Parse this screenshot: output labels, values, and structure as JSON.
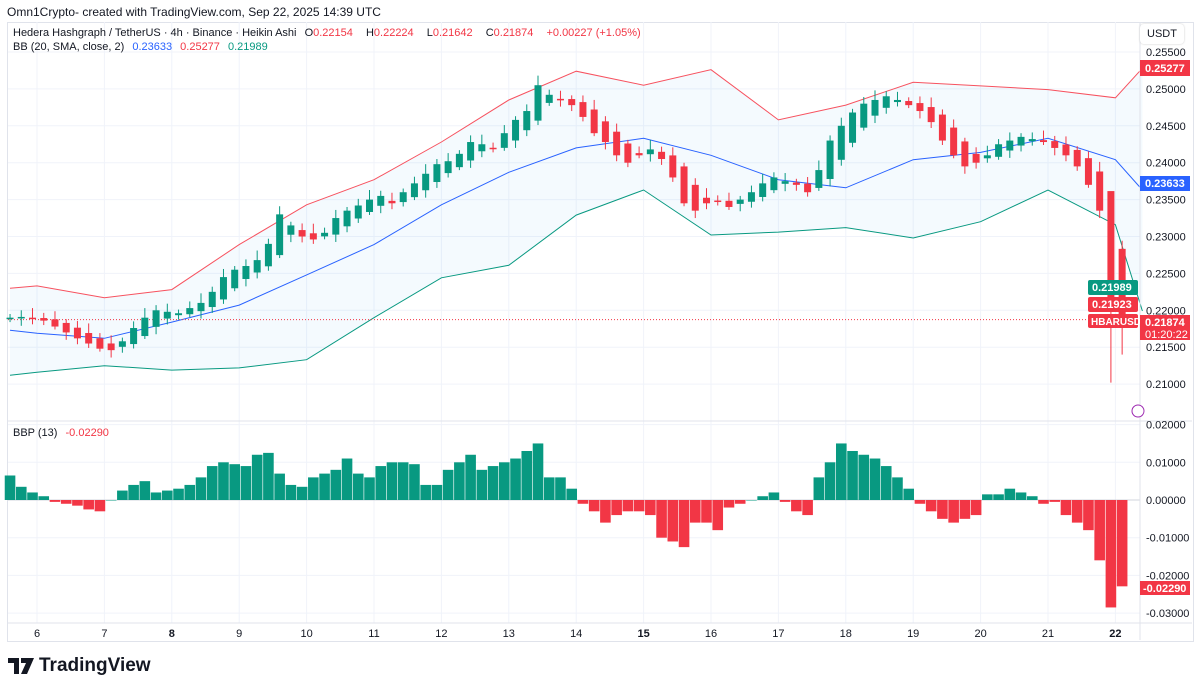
{
  "header": {
    "credit": "Omn1Crypto- created with TradingView.com, Sep 22, 2025 14:39 UTC"
  },
  "legend": {
    "symbol": "Hedera Hashgraph / TetherUS · 4h · Binance · Heikin Ashi",
    "o_label": "O",
    "o": "0.22154",
    "h_label": "H",
    "h": "0.22224",
    "l_label": "L",
    "l": "0.21642",
    "c_label": "C",
    "c": "0.21874",
    "change": "+0.00227 (+1.05%)",
    "bb_label": "BB (20, SMA, close, 2)",
    "bb_mid": "0.23633",
    "bb_up": "0.25277",
    "bb_low": "0.21989",
    "bbp_label": "BBP (13)",
    "bbp_value": "-0.02290"
  },
  "currency_button": "USDT",
  "price_axis": {
    "ticks": [
      "0.25500",
      "0.25000",
      "0.24500",
      "0.24000",
      "0.23500",
      "0.23000",
      "0.22500",
      "0.22000",
      "0.21500",
      "0.21000"
    ]
  },
  "bbp_axis": {
    "ticks": [
      "0.02000",
      "0.01000",
      "0.00000",
      "-0.01000",
      "-0.02000",
      "-0.03000"
    ]
  },
  "labels": {
    "upper": "0.25277",
    "middle": "0.23633",
    "lower": "0.21989",
    "prev": "0.21923",
    "symbol": "HBARUSDT",
    "price": "0.21874",
    "countdown": "01:20:22",
    "bbp": "-0.02290"
  },
  "time_axis": {
    "ticks": [
      "6",
      "7",
      "8",
      "9",
      "10",
      "11",
      "12",
      "13",
      "14",
      "15",
      "16",
      "17",
      "18",
      "19",
      "20",
      "21",
      "22"
    ]
  },
  "logo_text": "TradingView",
  "colors": {
    "up": "#089981",
    "down": "#f23645",
    "mid": "#2962ff",
    "upper": "#f7525f",
    "lower": "#089981"
  },
  "chart_data": {
    "type": "candlestick",
    "start_day": 5.6,
    "candles_per_day": 6,
    "closes": [
      0.219,
      0.2191,
      0.2189,
      0.2186,
      0.2178,
      0.217,
      0.2162,
      0.2155,
      0.2148,
      0.2146,
      0.2158,
      0.2176,
      0.219,
      0.22,
      0.2198,
      0.2196,
      0.2203,
      0.221,
      0.2225,
      0.2245,
      0.2255,
      0.226,
      0.2268,
      0.229,
      0.233,
      0.2315,
      0.23,
      0.2296,
      0.2305,
      0.2325,
      0.2335,
      0.2342,
      0.235,
      0.2355,
      0.2345,
      0.236,
      0.2372,
      0.2385,
      0.2398,
      0.2402,
      0.2412,
      0.2428,
      0.2425,
      0.242,
      0.244,
      0.2458,
      0.247,
      0.2505,
      0.2492,
      0.2486,
      0.2478,
      0.2462,
      0.244,
      0.2428,
      0.241,
      0.24,
      0.241,
      0.2418,
      0.2405,
      0.238,
      0.2345,
      0.2335,
      0.2345,
      0.2348,
      0.234,
      0.235,
      0.236,
      0.2372,
      0.238,
      0.2375,
      0.237,
      0.236,
      0.239,
      0.243,
      0.245,
      0.2468,
      0.248,
      0.2485,
      0.249,
      0.2485,
      0.2478,
      0.247,
      0.2455,
      0.243,
      0.241,
      0.2395,
      0.24,
      0.241,
      0.2425,
      0.243,
      0.2435,
      0.2432,
      0.2428,
      0.242,
      0.241,
      0.2395,
      0.237,
      0.2335,
      0.2205,
      0.2187
    ],
    "bb_days": [
      5.6,
      6,
      7,
      8,
      9,
      10,
      11,
      12,
      13,
      14,
      15,
      16,
      17,
      18,
      19,
      20,
      21,
      22,
      22.4
    ],
    "bb_upper": [
      0.223,
      0.2233,
      0.2217,
      0.2228,
      0.2289,
      0.2343,
      0.2377,
      0.2428,
      0.2485,
      0.2524,
      0.2505,
      0.2526,
      0.2458,
      0.2478,
      0.2509,
      0.2504,
      0.2499,
      0.2488,
      0.2528
    ],
    "bb_middle": [
      0.2173,
      0.2169,
      0.2162,
      0.2184,
      0.2207,
      0.2248,
      0.2289,
      0.2343,
      0.2387,
      0.242,
      0.2433,
      0.241,
      0.2377,
      0.2366,
      0.2404,
      0.2414,
      0.2433,
      0.2404,
      0.2363
    ],
    "bb_lower": [
      0.2112,
      0.2116,
      0.2125,
      0.2119,
      0.2122,
      0.2133,
      0.219,
      0.2244,
      0.2261,
      0.2329,
      0.2363,
      0.2302,
      0.2306,
      0.2312,
      0.2298,
      0.232,
      0.2363,
      0.2316,
      0.2199
    ],
    "bbp": [
      0.0065,
      0.0035,
      0.002,
      0.001,
      -0.0005,
      -0.001,
      -0.0015,
      -0.0025,
      -0.003,
      0.0,
      0.0025,
      0.004,
      0.005,
      0.002,
      0.0025,
      0.003,
      0.004,
      0.006,
      0.009,
      0.01,
      0.0095,
      0.009,
      0.012,
      0.0125,
      0.007,
      0.004,
      0.0035,
      0.006,
      0.007,
      0.008,
      0.011,
      0.007,
      0.006,
      0.009,
      0.01,
      0.01,
      0.0095,
      0.004,
      0.004,
      0.008,
      0.01,
      0.012,
      0.008,
      0.009,
      0.01,
      0.011,
      0.013,
      0.015,
      0.006,
      0.006,
      0.003,
      -0.001,
      -0.003,
      -0.006,
      -0.004,
      -0.003,
      -0.003,
      -0.004,
      -0.01,
      -0.011,
      -0.0125,
      -0.006,
      -0.006,
      -0.008,
      -0.002,
      -0.001,
      0.0,
      0.001,
      0.002,
      -0.0005,
      -0.003,
      -0.004,
      0.006,
      0.01,
      0.015,
      0.013,
      0.012,
      0.011,
      0.009,
      0.006,
      0.003,
      -0.001,
      -0.003,
      -0.005,
      -0.006,
      -0.005,
      -0.004,
      0.0015,
      0.0015,
      0.003,
      0.002,
      0.001,
      -0.001,
      -0.0005,
      -0.004,
      -0.006,
      -0.008,
      -0.016,
      -0.0285,
      -0.0229
    ],
    "price_range": [
      0.2055,
      0.2585
    ],
    "bbp_range": [
      -0.033,
      0.021
    ],
    "current_price": 0.21874
  }
}
